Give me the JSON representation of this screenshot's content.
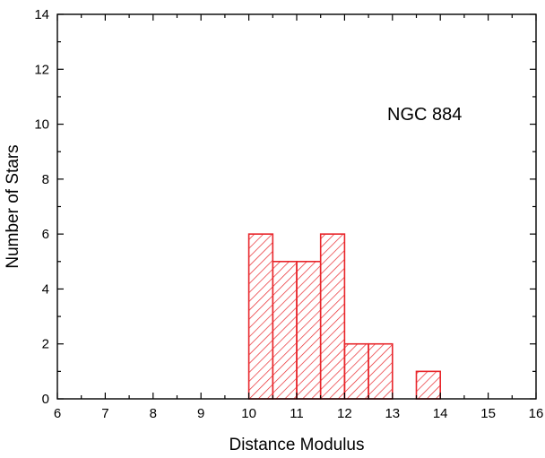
{
  "chart_data": {
    "type": "bar",
    "style": "histogram",
    "bar_color": "#e8262b",
    "fill_pattern": "diagonal-hatch",
    "bins": [
      {
        "x0": 10.0,
        "x1": 10.5,
        "count": 6
      },
      {
        "x0": 10.5,
        "x1": 11.0,
        "count": 5
      },
      {
        "x0": 11.0,
        "x1": 11.5,
        "count": 5
      },
      {
        "x0": 11.5,
        "x1": 12.0,
        "count": 6
      },
      {
        "x0": 12.0,
        "x1": 12.5,
        "count": 2
      },
      {
        "x0": 12.5,
        "x1": 13.0,
        "count": 2
      },
      {
        "x0": 13.5,
        "x1": 14.0,
        "count": 1
      }
    ],
    "xlabel": "Distance Modulus",
    "ylabel": "Number of Stars",
    "annotation": "NGC 884",
    "annotation_position": "upper-right",
    "xlim": [
      6,
      16
    ],
    "ylim": [
      0,
      14
    ],
    "xticks": [
      6,
      7,
      8,
      9,
      10,
      11,
      12,
      13,
      14,
      15,
      16
    ],
    "yticks": [
      0,
      2,
      4,
      6,
      8,
      10,
      12,
      14
    ],
    "grid": false,
    "legend": "none"
  }
}
